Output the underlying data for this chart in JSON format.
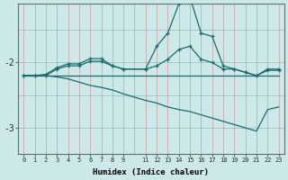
{
  "xlabel": "Humidex (Indice chaleur)",
  "background_color": "#cce8e8",
  "line_color": "#1a6b6b",
  "xlim": [
    -0.5,
    23.5
  ],
  "ylim": [
    -3.4,
    -1.1
  ],
  "yticks": [
    -3,
    -2
  ],
  "xtick_labels": [
    "0",
    "1",
    "2",
    "3",
    "4",
    "5",
    "6",
    "7",
    "8",
    "9",
    "11",
    "12",
    "13",
    "14",
    "15",
    "16",
    "17",
    "18",
    "19",
    "20",
    "21",
    "22",
    "23"
  ],
  "xtick_positions": [
    0,
    1,
    2,
    3,
    4,
    5,
    6,
    7,
    8,
    9,
    11,
    12,
    13,
    14,
    15,
    16,
    17,
    18,
    19,
    20,
    21,
    22,
    23
  ],
  "line1_x": [
    0,
    1,
    2,
    3,
    4,
    5,
    6,
    7,
    8,
    9,
    11,
    12,
    13,
    14,
    15,
    16,
    17,
    18,
    19,
    20,
    21,
    22,
    23
  ],
  "line1_y": [
    -2.2,
    -2.2,
    -2.2,
    -2.2,
    -2.2,
    -2.2,
    -2.2,
    -2.2,
    -2.2,
    -2.2,
    -2.2,
    -2.2,
    -2.2,
    -2.2,
    -2.2,
    -2.2,
    -2.2,
    -2.2,
    -2.2,
    -2.2,
    -2.2,
    -2.2,
    -2.2
  ],
  "line2_x": [
    0,
    1,
    2,
    3,
    4,
    5,
    6,
    7,
    8,
    9,
    11,
    12,
    13,
    14,
    15,
    16,
    17,
    18,
    19,
    20,
    21,
    22,
    23
  ],
  "line2_y": [
    -2.2,
    -2.2,
    -2.2,
    -2.1,
    -2.05,
    -2.05,
    -1.98,
    -1.98,
    -2.05,
    -2.1,
    -2.1,
    -2.05,
    -1.95,
    -1.8,
    -1.75,
    -1.95,
    -2.0,
    -2.1,
    -2.1,
    -2.15,
    -2.2,
    -2.1,
    -2.1
  ],
  "line3_x": [
    0,
    1,
    2,
    3,
    4,
    5,
    6,
    7,
    8,
    9,
    11,
    12,
    13,
    14,
    15,
    16,
    17,
    18,
    19,
    20,
    21,
    22,
    23
  ],
  "line3_y": [
    -2.2,
    -2.2,
    -2.18,
    -2.08,
    -2.02,
    -2.02,
    -1.94,
    -1.94,
    -2.05,
    -2.1,
    -2.1,
    -1.75,
    -1.55,
    -1.1,
    -1.0,
    -1.55,
    -1.6,
    -2.05,
    -2.1,
    -2.15,
    -2.2,
    -2.12,
    -2.12
  ],
  "line4_x": [
    0,
    1,
    2,
    3,
    4,
    5,
    6,
    7,
    8,
    9,
    11,
    12,
    13,
    14,
    15,
    16,
    17,
    18,
    19,
    20,
    21,
    22,
    23
  ],
  "line4_y": [
    -2.2,
    -2.2,
    -2.2,
    -2.22,
    -2.25,
    -2.3,
    -2.35,
    -2.38,
    -2.42,
    -2.48,
    -2.58,
    -2.62,
    -2.68,
    -2.72,
    -2.75,
    -2.8,
    -2.85,
    -2.9,
    -2.95,
    -3.0,
    -3.05,
    -2.72,
    -2.68
  ]
}
